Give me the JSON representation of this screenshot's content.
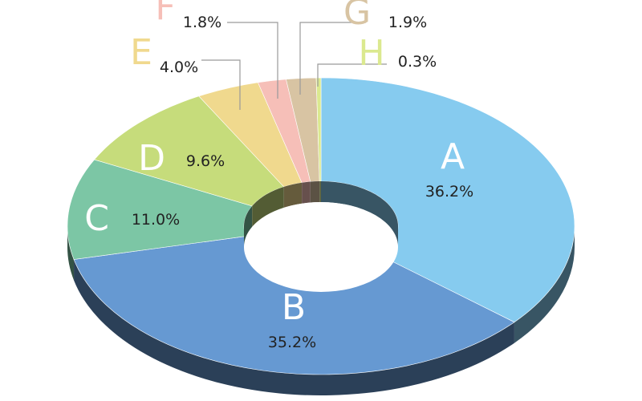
{
  "chart_data": {
    "type": "pie",
    "style": "3d-donut",
    "title": "",
    "legend": "none",
    "slices": [
      {
        "name": "A",
        "value": 36.2,
        "label": "36.2%",
        "color": "#86cbef"
      },
      {
        "name": "B",
        "value": 35.2,
        "label": "35.2%",
        "color": "#6699d2"
      },
      {
        "name": "C",
        "value": 11.0,
        "label": "11.0%",
        "color": "#7cc6a5"
      },
      {
        "name": "D",
        "value": 9.6,
        "label": "9.6%",
        "color": "#c6dc7b"
      },
      {
        "name": "E",
        "value": 4.0,
        "label": "4.0%",
        "color": "#f0d98e"
      },
      {
        "name": "F",
        "value": 1.8,
        "label": "1.8%",
        "color": "#f6bfb8"
      },
      {
        "name": "G",
        "value": 1.9,
        "label": "1.9%",
        "color": "#d8c4a3"
      },
      {
        "name": "H",
        "value": 0.3,
        "label": "0.3%",
        "color": "#dbe98f"
      }
    ]
  }
}
